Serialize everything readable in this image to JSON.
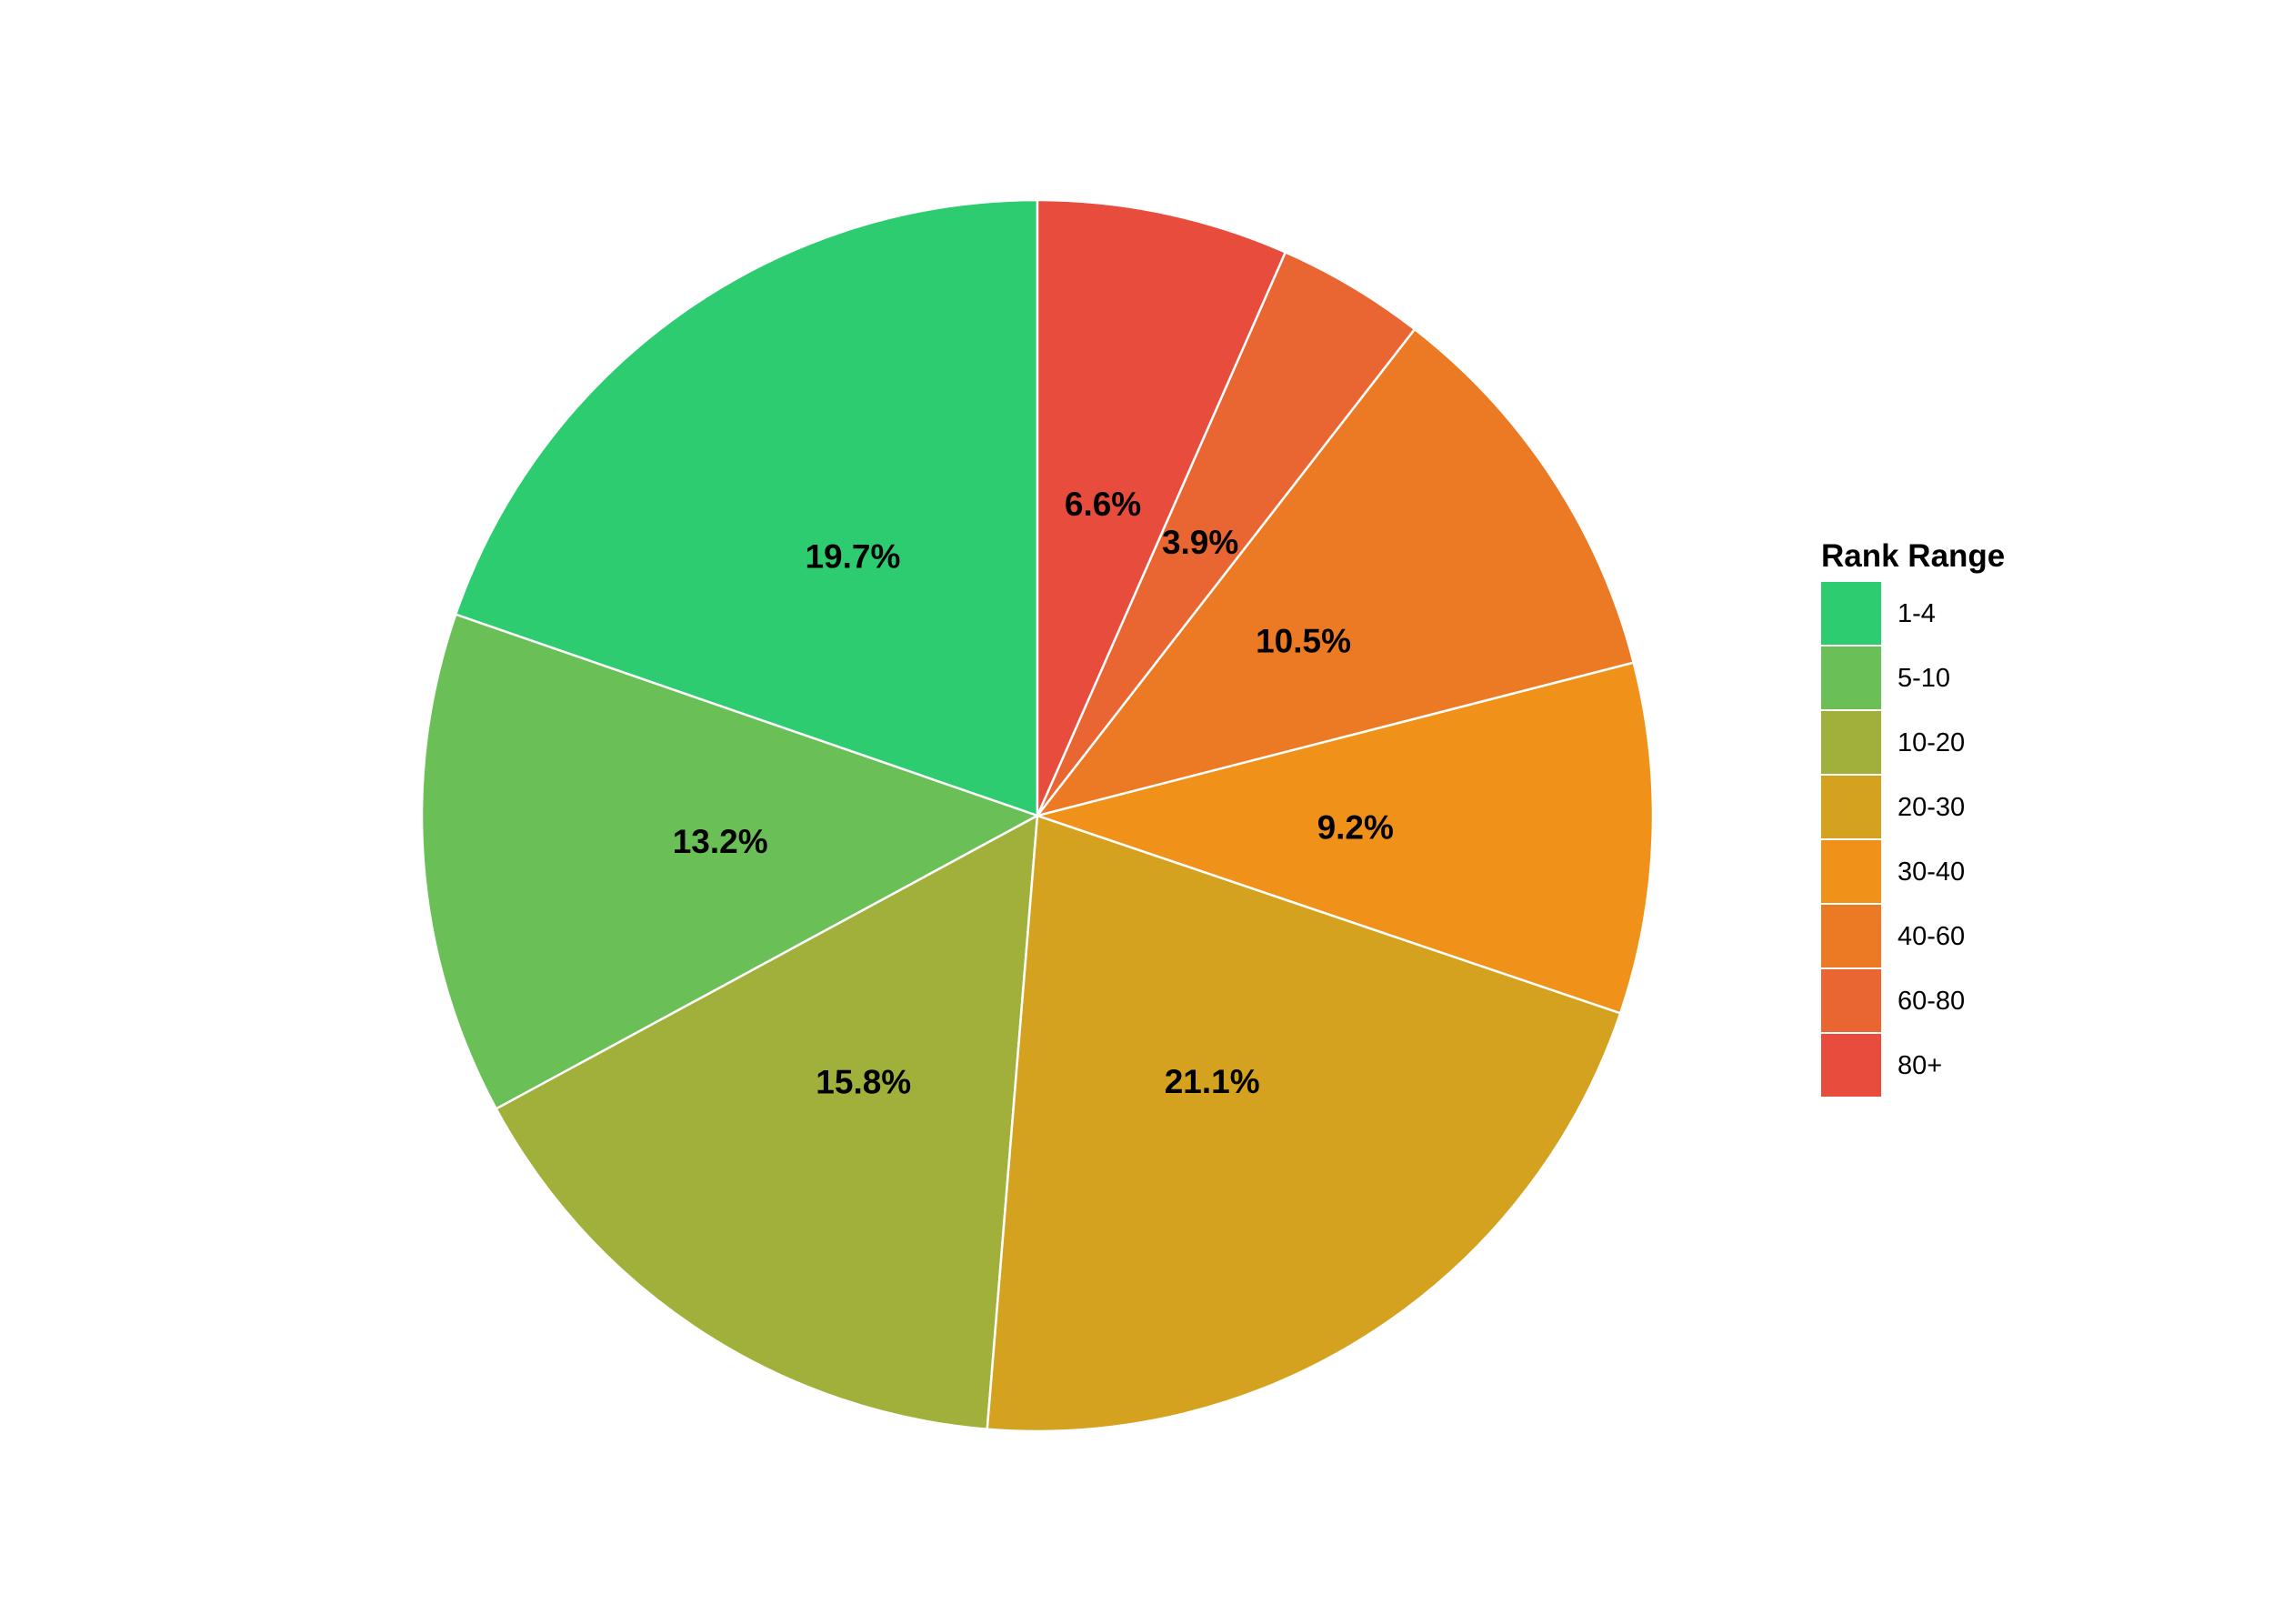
{
  "chart_data": {
    "type": "pie",
    "legend_title": "Rank Range",
    "legend_position": "right",
    "start": "top",
    "direction": "counterclockwise",
    "slices": [
      {
        "label": "1-4",
        "value": 19.7,
        "display": "19.7%",
        "color": "#2ecc71"
      },
      {
        "label": "5-10",
        "value": 13.2,
        "display": "13.2%",
        "color": "#6abf56"
      },
      {
        "label": "10-20",
        "value": 15.8,
        "display": "15.8%",
        "color": "#a0b03a"
      },
      {
        "label": "20-30",
        "value": 21.1,
        "display": "21.1%",
        "color": "#d5a220"
      },
      {
        "label": "30-40",
        "value": 9.2,
        "display": "9.2%",
        "color": "#f0921a"
      },
      {
        "label": "40-60",
        "value": 10.5,
        "display": "10.5%",
        "color": "#ec7a24"
      },
      {
        "label": "60-80",
        "value": 3.9,
        "display": "3.9%",
        "color": "#e96633"
      },
      {
        "label": "80+",
        "value": 6.6,
        "display": "6.6%",
        "color": "#e74c3c"
      }
    ]
  }
}
